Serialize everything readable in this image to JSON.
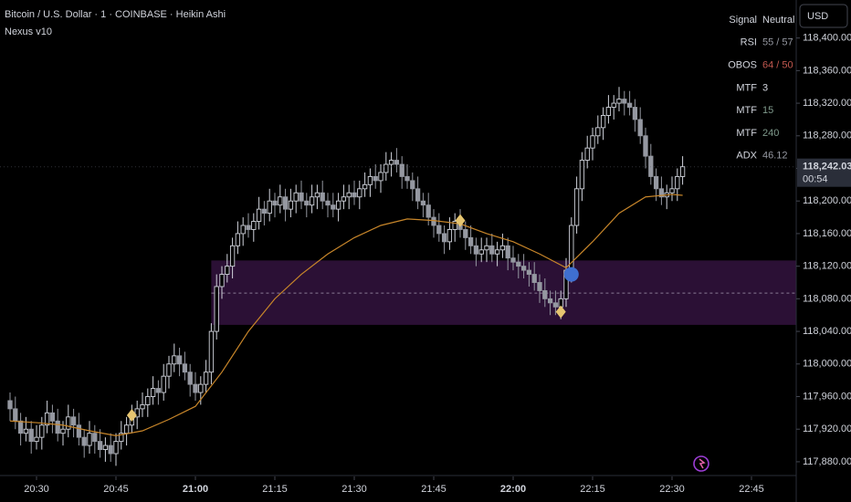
{
  "header": {
    "title": "Bitcoin / U.S. Dollar · 1 · COINBASE · Heikin Ashi",
    "indicator": "Nexus v10",
    "currency": "USD"
  },
  "indicator_table": {
    "rows": [
      {
        "label": "Signal",
        "value": "Neutral",
        "color": "#d1d4dc"
      },
      {
        "label": "RSI",
        "value": "55 / 57",
        "color": "#9598a1"
      },
      {
        "label": "OBOS",
        "value": "64 / 50",
        "color": "#c2584f"
      },
      {
        "label": "MTF",
        "value": "3",
        "color": "#d1d4dc"
      },
      {
        "label": "MTF",
        "value": "15",
        "color": "#7f9a8c"
      },
      {
        "label": "MTF",
        "value": "240",
        "color": "#7f9a8c"
      },
      {
        "label": "ADX",
        "value": "46.12",
        "color": "#9598a1"
      }
    ]
  },
  "chart_data": {
    "type": "candlestick",
    "categories": [
      "20:25",
      "20:26",
      "20:27",
      "20:28",
      "20:29",
      "20:30",
      "20:31",
      "20:32",
      "20:33",
      "20:34",
      "20:35",
      "20:36",
      "20:37",
      "20:38",
      "20:39",
      "20:40",
      "20:41",
      "20:42",
      "20:43",
      "20:44",
      "20:45",
      "20:46",
      "20:47",
      "20:48",
      "20:49",
      "20:50",
      "20:51",
      "20:52",
      "20:53",
      "20:54",
      "20:55",
      "20:56",
      "20:57",
      "20:58",
      "20:59",
      "21:00",
      "21:01",
      "21:02",
      "21:03",
      "21:04",
      "21:05",
      "21:06",
      "21:07",
      "21:08",
      "21:09",
      "21:10",
      "21:11",
      "21:12",
      "21:13",
      "21:14",
      "21:15",
      "21:16",
      "21:17",
      "21:18",
      "21:19",
      "21:20",
      "21:21",
      "21:22",
      "21:23",
      "21:24",
      "21:25",
      "21:26",
      "21:27",
      "21:28",
      "21:29",
      "21:30",
      "21:31",
      "21:32",
      "21:33",
      "21:34",
      "21:35",
      "21:36",
      "21:37",
      "21:38",
      "21:39",
      "21:40",
      "21:41",
      "21:42",
      "21:43",
      "21:44",
      "21:45",
      "21:46",
      "21:47",
      "21:48",
      "21:49",
      "21:50",
      "21:51",
      "21:52",
      "21:53",
      "21:54",
      "21:55",
      "21:56",
      "21:57",
      "21:58",
      "21:59",
      "22:00",
      "22:01",
      "22:02",
      "22:03",
      "22:04",
      "22:05",
      "22:06",
      "22:07",
      "22:08",
      "22:09",
      "22:10",
      "22:11",
      "22:12",
      "22:13",
      "22:14",
      "22:15",
      "22:16",
      "22:17",
      "22:18",
      "22:19",
      "22:20",
      "22:21",
      "22:22",
      "22:23",
      "22:24",
      "22:25",
      "22:26",
      "22:27",
      "22:28",
      "22:29",
      "22:30",
      "22:31",
      "22:32"
    ],
    "open": [
      117955,
      117945,
      117930,
      117915,
      117920,
      117905,
      117910,
      117925,
      117940,
      117930,
      117915,
      117920,
      117935,
      117925,
      117910,
      117900,
      117915,
      117905,
      117895,
      117900,
      117890,
      117905,
      117915,
      117925,
      117935,
      117945,
      117950,
      117960,
      117970,
      117965,
      117985,
      118000,
      118010,
      118000,
      117990,
      117975,
      117965,
      117975,
      117990,
      118040,
      118095,
      118110,
      118120,
      118145,
      118160,
      118170,
      118165,
      118175,
      118190,
      118185,
      118200,
      118195,
      118205,
      118190,
      118200,
      118210,
      118200,
      118195,
      118205,
      118210,
      118200,
      118195,
      118190,
      118200,
      118205,
      118210,
      118205,
      118215,
      118220,
      118230,
      118225,
      118235,
      118245,
      118250,
      118245,
      118230,
      118225,
      118215,
      118200,
      118195,
      118180,
      118170,
      118160,
      118150,
      118165,
      118175,
      118165,
      118155,
      118145,
      118135,
      118140,
      118145,
      118135,
      118140,
      118145,
      118130,
      118125,
      118120,
      118115,
      118110,
      118100,
      118090,
      118080,
      118075,
      118070,
      118080,
      118115,
      118170,
      118215,
      118250,
      118265,
      118280,
      118290,
      118305,
      118315,
      118320,
      118325,
      118320,
      118315,
      118300,
      118280,
      118255,
      118230,
      118215,
      118205,
      118210,
      118215,
      118230
    ],
    "high": [
      117965,
      117960,
      117940,
      117935,
      117930,
      117925,
      117935,
      117955,
      117950,
      117945,
      117930,
      117950,
      117945,
      117940,
      117920,
      117930,
      117925,
      117920,
      117910,
      117915,
      117915,
      117930,
      117935,
      117950,
      117955,
      117965,
      117970,
      117985,
      117980,
      118000,
      118010,
      118025,
      118020,
      118015,
      118000,
      117990,
      117985,
      118005,
      118050,
      118110,
      118120,
      118135,
      118155,
      118175,
      118180,
      118185,
      118185,
      118205,
      118200,
      118215,
      118210,
      118220,
      118215,
      118215,
      118220,
      118225,
      118210,
      118220,
      118220,
      118225,
      118210,
      118210,
      118210,
      118220,
      118220,
      118225,
      118225,
      118235,
      118240,
      118245,
      118245,
      118260,
      118260,
      118265,
      118255,
      118245,
      118235,
      118230,
      118210,
      118210,
      118190,
      118185,
      118170,
      118180,
      118185,
      118190,
      118175,
      118170,
      118155,
      118155,
      118155,
      118160,
      118150,
      118160,
      118155,
      118145,
      118135,
      118135,
      118125,
      118125,
      118110,
      118105,
      118090,
      118090,
      118090,
      118130,
      118180,
      118230,
      118260,
      118280,
      118290,
      118305,
      118315,
      118330,
      118330,
      118340,
      118335,
      118335,
      118325,
      118315,
      118290,
      118270,
      118240,
      118230,
      118220,
      118230,
      118240,
      118255
    ],
    "low": [
      117930,
      117920,
      117900,
      117905,
      117890,
      117895,
      117895,
      117915,
      117915,
      117905,
      117900,
      117910,
      117910,
      117900,
      117885,
      117890,
      117890,
      117885,
      117880,
      117880,
      117875,
      117895,
      117900,
      117915,
      117920,
      117935,
      117935,
      117950,
      117950,
      117955,
      117970,
      117990,
      117985,
      117980,
      117960,
      117955,
      117950,
      117965,
      117975,
      118030,
      118080,
      118100,
      118105,
      118135,
      118145,
      118155,
      118150,
      118165,
      118170,
      118175,
      118180,
      118185,
      118175,
      118180,
      118185,
      118190,
      118180,
      118185,
      118190,
      118190,
      118180,
      118180,
      118175,
      118190,
      118190,
      118195,
      118190,
      118205,
      118205,
      118215,
      118210,
      118225,
      118230,
      118235,
      118215,
      118215,
      118200,
      118190,
      118180,
      118170,
      118155,
      118150,
      118135,
      118140,
      118150,
      118155,
      118140,
      118135,
      118120,
      118125,
      118125,
      118125,
      118120,
      118130,
      118115,
      118115,
      118105,
      118105,
      118095,
      118090,
      118075,
      118070,
      118060,
      118060,
      118055,
      118070,
      118100,
      118160,
      118200,
      118240,
      118250,
      118270,
      118275,
      118295,
      118300,
      118310,
      118305,
      118305,
      118285,
      118270,
      118240,
      118220,
      118200,
      118195,
      118190,
      118200,
      118200,
      118220
    ],
    "close": [
      117945,
      117930,
      117915,
      117920,
      117905,
      117910,
      117925,
      117940,
      117930,
      117915,
      117920,
      117935,
      117925,
      117910,
      117900,
      117915,
      117905,
      117895,
      117900,
      117890,
      117905,
      117915,
      117925,
      117935,
      117945,
      117950,
      117960,
      117970,
      117965,
      117985,
      118000,
      118010,
      118000,
      117990,
      117975,
      117965,
      117975,
      117990,
      118040,
      118095,
      118110,
      118120,
      118145,
      118160,
      118170,
      118165,
      118175,
      118190,
      118185,
      118200,
      118195,
      118205,
      118190,
      118200,
      118210,
      118200,
      118195,
      118205,
      118210,
      118200,
      118195,
      118190,
      118200,
      118205,
      118210,
      118205,
      118215,
      118220,
      118230,
      118225,
      118235,
      118245,
      118250,
      118245,
      118230,
      118225,
      118215,
      118200,
      118195,
      118180,
      118170,
      118160,
      118150,
      118165,
      118175,
      118165,
      118155,
      118145,
      118135,
      118140,
      118145,
      118135,
      118140,
      118145,
      118130,
      118125,
      118120,
      118115,
      118110,
      118100,
      118090,
      118080,
      118075,
      118070,
      118080,
      118115,
      118170,
      118215,
      118250,
      118265,
      118280,
      118290,
      118305,
      118315,
      118320,
      118325,
      118320,
      118315,
      118300,
      118280,
      118255,
      118230,
      118215,
      118205,
      118210,
      118215,
      118230,
      118242.03
    ],
    "up_color": "#d1d4dc",
    "down_color": "#9598a1",
    "ma": {
      "color": "#c8862a",
      "x": [
        "20:25",
        "20:30",
        "20:35",
        "20:40",
        "20:45",
        "20:50",
        "20:55",
        "21:00",
        "21:05",
        "21:10",
        "21:15",
        "21:20",
        "21:25",
        "21:30",
        "21:35",
        "21:40",
        "21:45",
        "21:50",
        "21:55",
        "22:00",
        "22:05",
        "22:10",
        "22:15",
        "22:20",
        "22:25",
        "22:30",
        "22:32"
      ],
      "values": [
        117930,
        117928,
        117925,
        117918,
        117912,
        117918,
        117932,
        117948,
        117990,
        118040,
        118080,
        118110,
        118135,
        118155,
        118170,
        118178,
        118176,
        118172,
        118160,
        118150,
        118135,
        118118,
        118150,
        118185,
        118205,
        118208,
        118207
      ]
    },
    "zone": {
      "start": "21:03",
      "top": 118127,
      "bottom": 118048,
      "mid": 118087,
      "color": "#2b1035",
      "mid_color": "#8a7a95"
    },
    "markers": [
      {
        "x": "20:48",
        "value": 117937,
        "shape": "diamond",
        "color": "#e6c570"
      },
      {
        "x": "21:50",
        "value": 118176,
        "shape": "diamond",
        "color": "#e6c570"
      },
      {
        "x": "22:09",
        "value": 118064,
        "shape": "diamond",
        "color": "#e6c570"
      },
      {
        "x": "22:11",
        "value": 118110,
        "shape": "circle",
        "color": "#3f6fd0"
      }
    ],
    "last_price": {
      "value": 118242.03,
      "label": "118,242.03"
    },
    "countdown": "00:54",
    "ylim": [
      117862,
      118422
    ],
    "yticks": [
      {
        "value": 117880,
        "label": "117,880.00"
      },
      {
        "value": 117920,
        "label": "117,920.00"
      },
      {
        "value": 117960,
        "label": "117,960.00"
      },
      {
        "value": 118000,
        "label": "118,000.00"
      },
      {
        "value": 118040,
        "label": "118,040.00"
      },
      {
        "value": 118080,
        "label": "118,080.00"
      },
      {
        "value": 118120,
        "label": "118,120.00"
      },
      {
        "value": 118160,
        "label": "118,160.00"
      },
      {
        "value": 118200,
        "label": "118,200.00"
      },
      {
        "value": 118240,
        "label": "118,240.00"
      },
      {
        "value": 118280,
        "label": "118,280.00"
      },
      {
        "value": 118320,
        "label": "118,320.00"
      },
      {
        "value": 118360,
        "label": "118,360.00"
      },
      {
        "value": 118400,
        "label": "118,400.00"
      }
    ],
    "xticks": [
      "20:30",
      "20:45",
      "21:00",
      "21:15",
      "21:30",
      "21:45",
      "22:00",
      "22:15",
      "22:30",
      "22:45"
    ]
  }
}
